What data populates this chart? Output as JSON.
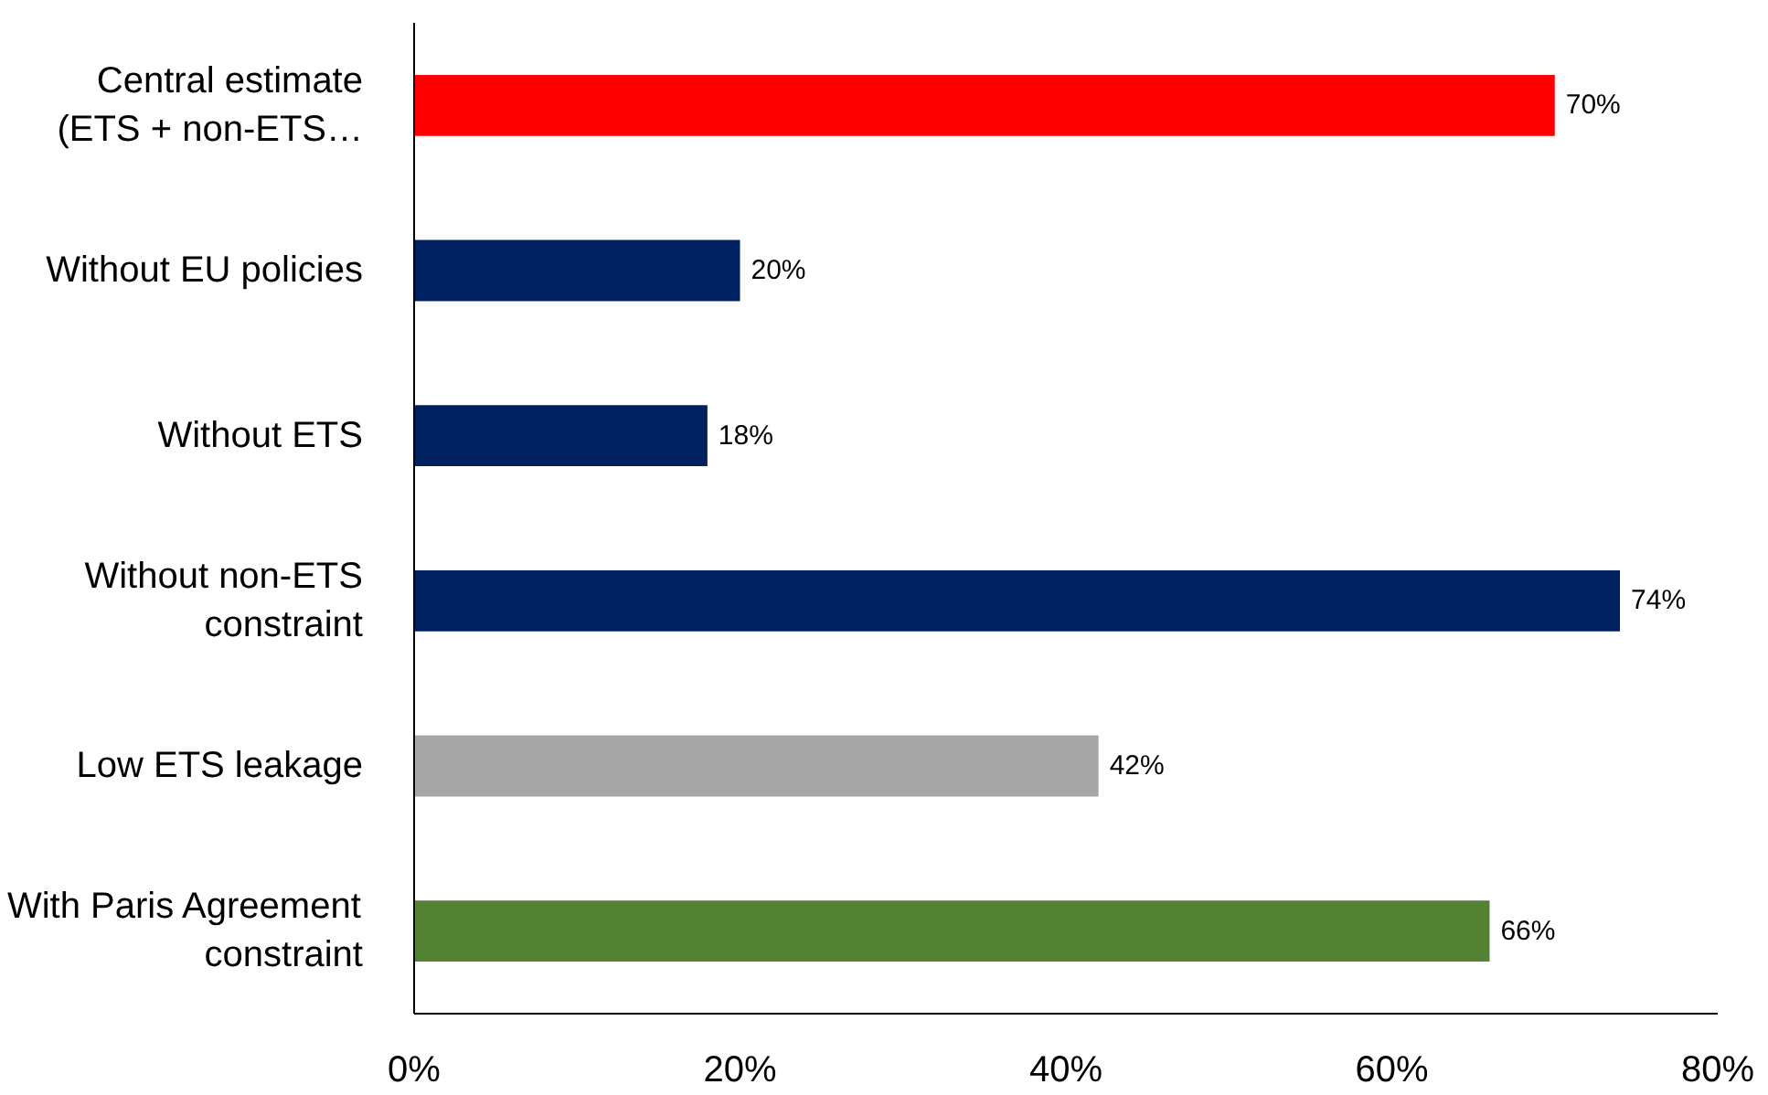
{
  "chart_data": {
    "type": "bar",
    "orientation": "horizontal",
    "categories": [
      "Central estimate\n(ETS + non-ETS…",
      "Without EU policies",
      "Without ETS",
      "Without non-ETS\nconstraint",
      "Low ETS leakage",
      "With Paris Agreement\nconstraint"
    ],
    "values": [
      70,
      20,
      18,
      74,
      42,
      66
    ],
    "colors": [
      "#ff0000",
      "#002060",
      "#002060",
      "#002060",
      "#a6a6a6",
      "#548235"
    ],
    "value_labels": [
      "70%",
      "20%",
      "18%",
      "74%",
      "42%",
      "66%"
    ],
    "xlim": [
      0,
      80
    ],
    "xticks": [
      {
        "value": 0,
        "label": "0%"
      },
      {
        "value": 20,
        "label": "20%"
      },
      {
        "value": 40,
        "label": "40%"
      },
      {
        "value": 60,
        "label": "60%"
      },
      {
        "value": 80,
        "label": "80%"
      }
    ],
    "grid": false
  }
}
